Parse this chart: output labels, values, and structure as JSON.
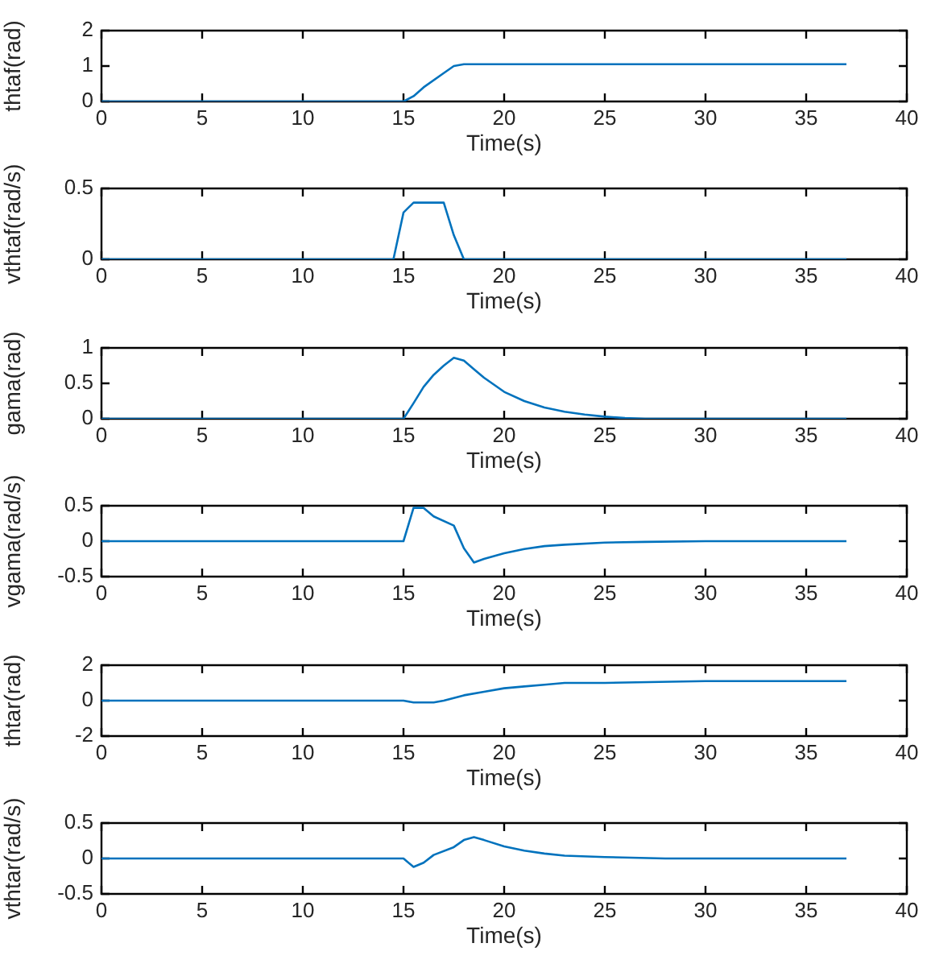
{
  "chart_data": [
    {
      "type": "line",
      "xlabel": "Time(s)",
      "ylabel": "thtaf(rad)",
      "xlim": [
        0,
        40
      ],
      "xticks": [
        0,
        5,
        10,
        15,
        20,
        25,
        30,
        35,
        40
      ],
      "ylim": [
        0,
        2
      ],
      "yticks": [
        0,
        1,
        2
      ],
      "series": [
        {
          "color": "#0072bd",
          "x": [
            0,
            15,
            15.5,
            16,
            17,
            17.5,
            18,
            37
          ],
          "values": [
            0,
            0,
            0.15,
            0.4,
            0.8,
            1.0,
            1.05,
            1.05
          ]
        }
      ]
    },
    {
      "type": "line",
      "xlabel": "Time(s)",
      "ylabel": "vthtaf(rad/s)",
      "xlim": [
        0,
        40
      ],
      "xticks": [
        0,
        5,
        10,
        15,
        20,
        25,
        30,
        35,
        40
      ],
      "ylim": [
        0,
        0.5
      ],
      "yticks": [
        0,
        0.5
      ],
      "series": [
        {
          "color": "#0072bd",
          "x": [
            0,
            14.5,
            15,
            15.5,
            17,
            17.5,
            18,
            37
          ],
          "values": [
            0,
            0,
            0.33,
            0.4,
            0.4,
            0.17,
            0,
            0
          ]
        }
      ]
    },
    {
      "type": "line",
      "xlabel": "Time(s)",
      "ylabel": "gama(rad)",
      "xlim": [
        0,
        40
      ],
      "xticks": [
        0,
        5,
        10,
        15,
        20,
        25,
        30,
        35,
        40
      ],
      "ylim": [
        0,
        1
      ],
      "yticks": [
        0,
        0.5,
        1
      ],
      "series": [
        {
          "color": "#0072bd",
          "x": [
            0,
            15,
            15.5,
            16,
            16.5,
            17,
            17.5,
            18,
            18.5,
            19,
            20,
            21,
            22,
            23,
            24,
            25,
            26,
            27,
            37
          ],
          "values": [
            0,
            0,
            0.22,
            0.45,
            0.62,
            0.75,
            0.86,
            0.82,
            0.7,
            0.58,
            0.38,
            0.25,
            0.16,
            0.1,
            0.06,
            0.03,
            0.01,
            0,
            0
          ]
        }
      ]
    },
    {
      "type": "line",
      "xlabel": "Time(s)",
      "ylabel": "vgama(rad/s)",
      "xlim": [
        0,
        40
      ],
      "xticks": [
        0,
        5,
        10,
        15,
        20,
        25,
        30,
        35,
        40
      ],
      "ylim": [
        -0.5,
        0.5
      ],
      "yticks": [
        -0.5,
        0,
        0.5
      ],
      "series": [
        {
          "color": "#0072bd",
          "x": [
            0,
            15,
            15.5,
            16,
            16.5,
            17.5,
            18,
            18.5,
            19,
            20,
            21,
            22,
            23,
            25,
            27,
            30,
            37
          ],
          "values": [
            0,
            0,
            0.47,
            0.47,
            0.35,
            0.22,
            -0.1,
            -0.3,
            -0.25,
            -0.17,
            -0.11,
            -0.07,
            -0.05,
            -0.02,
            -0.01,
            0,
            0
          ]
        }
      ]
    },
    {
      "type": "line",
      "xlabel": "Time(s)",
      "ylabel": "thtar(rad)",
      "xlim": [
        0,
        40
      ],
      "xticks": [
        0,
        5,
        10,
        15,
        20,
        25,
        30,
        35,
        40
      ],
      "ylim": [
        -2,
        2
      ],
      "yticks": [
        -2,
        0,
        2
      ],
      "series": [
        {
          "color": "#0072bd",
          "x": [
            0,
            15,
            15.5,
            16,
            16.5,
            17,
            18,
            19,
            20,
            21,
            22,
            23,
            25,
            30,
            37
          ],
          "values": [
            0,
            0,
            -0.1,
            -0.1,
            -0.1,
            0,
            0.3,
            0.5,
            0.7,
            0.8,
            0.9,
            1.0,
            1.0,
            1.1,
            1.1
          ]
        }
      ]
    },
    {
      "type": "line",
      "xlabel": "Time(s)",
      "ylabel": "vthtar(rad/s)",
      "xlim": [
        0,
        40
      ],
      "xticks": [
        0,
        5,
        10,
        15,
        20,
        25,
        30,
        35,
        40
      ],
      "ylim": [
        -0.5,
        0.5
      ],
      "yticks": [
        -0.5,
        0,
        0.5
      ],
      "series": [
        {
          "color": "#0072bd",
          "x": [
            0,
            15,
            15.5,
            16,
            16.5,
            17.5,
            18,
            18.5,
            19,
            20,
            21,
            22,
            23,
            25,
            28,
            37
          ],
          "values": [
            0,
            0,
            -0.12,
            -0.06,
            0.05,
            0.16,
            0.26,
            0.3,
            0.26,
            0.17,
            0.11,
            0.07,
            0.04,
            0.02,
            0,
            0
          ]
        }
      ]
    }
  ]
}
